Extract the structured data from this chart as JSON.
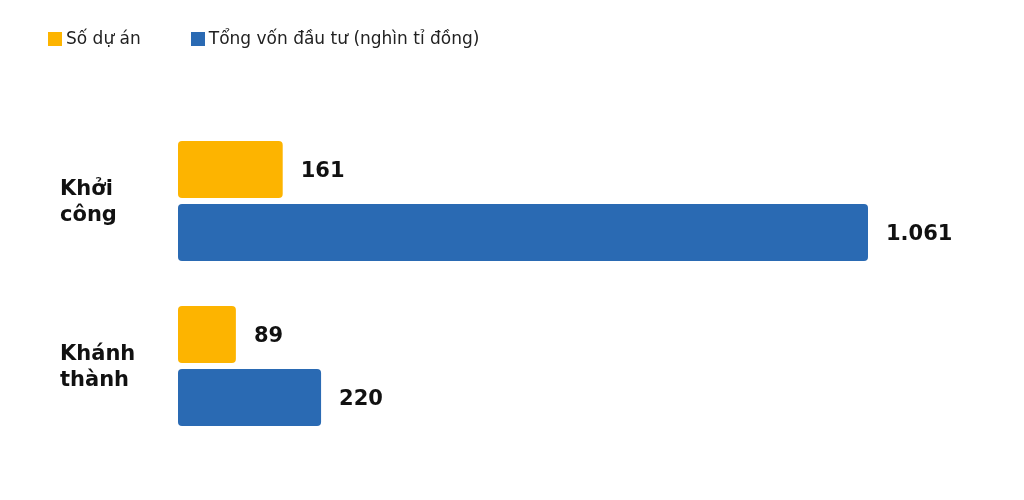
{
  "chart_data": {
    "type": "bar",
    "orientation": "horizontal",
    "categories": [
      "Khởi công",
      "Khánh thành"
    ],
    "series": [
      {
        "name": "Số dự án",
        "color": "#fdb400",
        "values": [
          161,
          89
        ],
        "value_labels": [
          "161",
          "89"
        ]
      },
      {
        "name": "Tổng vốn đầu tư (nghìn tỉ đồng)",
        "color": "#2a6ab3",
        "values": [
          1061,
          220
        ],
        "value_labels": [
          "1.061",
          "220"
        ]
      }
    ],
    "legend": "top left"
  }
}
